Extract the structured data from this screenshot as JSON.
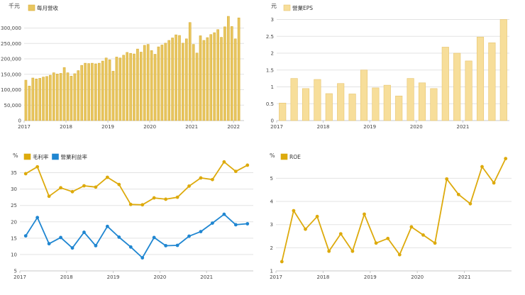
{
  "chart_data": [
    {
      "id": "monthly-revenue",
      "type": "bar",
      "unit": "千元",
      "series": [
        {
          "name": "每月營收",
          "color": "#E8C660",
          "edge": "#D9AE35"
        }
      ],
      "x_labels": [
        "2017",
        "2018",
        "2019",
        "2020",
        "2021",
        "2022"
      ],
      "y_ticks": [
        "0",
        "50,000",
        "100,000",
        "150,000",
        "200,000",
        "250,000",
        "300,000"
      ],
      "ylim": [
        0,
        345000
      ],
      "start": "2017-01",
      "values": [
        131000,
        112000,
        138000,
        135000,
        137000,
        141000,
        143000,
        147000,
        155000,
        151000,
        153000,
        172000,
        155000,
        144000,
        152000,
        162000,
        179000,
        186000,
        185000,
        186000,
        184000,
        186000,
        193000,
        203000,
        197000,
        160000,
        206000,
        203000,
        212000,
        221000,
        218000,
        216000,
        232000,
        222000,
        244000,
        247000,
        227000,
        215000,
        239000,
        245000,
        251000,
        260000,
        268000,
        278000,
        276000,
        251000,
        265000,
        318000,
        247000,
        219000,
        275000,
        260000,
        269000,
        279000,
        285000,
        295000,
        270000,
        304000,
        338000,
        305000,
        265000,
        333000
      ]
    },
    {
      "id": "quarterly-eps",
      "type": "bar",
      "unit": "元",
      "series": [
        {
          "name": "營業EPS",
          "color": "#F7DE9A",
          "edge": "#E6C46E"
        }
      ],
      "x_labels": [
        "2017",
        "2018",
        "2019",
        "2020",
        "2021"
      ],
      "y_ticks": [
        "0",
        "0.5",
        "1",
        "1.5",
        "2",
        "2.5",
        "3"
      ],
      "ylim": [
        0,
        3.2
      ],
      "start": "2017-Q1",
      "values": [
        0.52,
        1.25,
        0.95,
        1.22,
        0.8,
        1.1,
        0.79,
        1.5,
        0.97,
        1.05,
        0.73,
        1.25,
        1.12,
        0.95,
        2.18,
        2.0,
        1.77,
        2.48,
        2.31,
        3.0
      ]
    },
    {
      "id": "margins",
      "type": "line",
      "unit": "%",
      "x_labels": [
        "2017",
        "2018",
        "2019",
        "2020",
        "2021"
      ],
      "y_ticks": [
        "5",
        "10",
        "15",
        "20",
        "25",
        "30",
        "35"
      ],
      "ylim": [
        5,
        37.5
      ],
      "start": "2017-Q1",
      "series": [
        {
          "name": "毛利率",
          "color": "#DDAA0C",
          "values": [
            34.7,
            36.8,
            27.8,
            30.4,
            29.2,
            31.0,
            30.6,
            33.6,
            31.4,
            25.3,
            25.2,
            27.3,
            26.9,
            27.5,
            30.9,
            33.4,
            32.9,
            38.3,
            35.4,
            37.3
          ]
        },
        {
          "name": "營業利益率",
          "color": "#1F86D1",
          "values": [
            15.7,
            21.3,
            13.3,
            15.2,
            12.0,
            16.8,
            12.7,
            18.6,
            15.3,
            12.3,
            9.0,
            15.2,
            12.7,
            12.8,
            15.6,
            17.0,
            19.6,
            22.3,
            19.1,
            19.4
          ]
        }
      ]
    },
    {
      "id": "roe",
      "type": "line",
      "unit": "%",
      "x_labels": [
        "2017",
        "2018",
        "2019",
        "2020",
        "2021"
      ],
      "y_ticks": [
        "1",
        "2",
        "3",
        "4",
        "5"
      ],
      "ylim": [
        1,
        5.9
      ],
      "start": "2017-Q1",
      "series": [
        {
          "name": "ROE",
          "color": "#DDAA0C",
          "values": [
            1.4,
            3.6,
            2.8,
            3.35,
            1.85,
            2.6,
            1.85,
            3.45,
            2.2,
            2.4,
            1.7,
            2.9,
            2.55,
            2.2,
            4.97,
            4.3,
            3.9,
            5.5,
            4.8,
            5.85
          ]
        }
      ]
    }
  ]
}
